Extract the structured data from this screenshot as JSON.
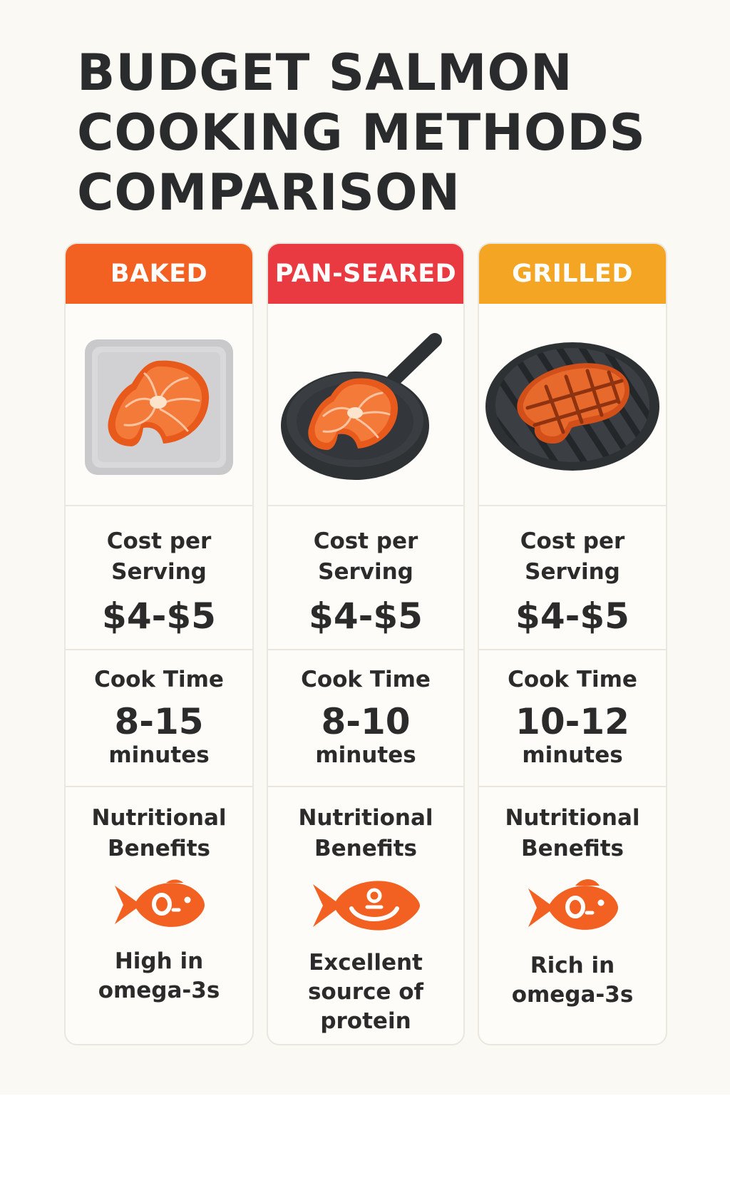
{
  "title_lines": [
    "BUDGET SALMON",
    "COOKING METHODS",
    "COMPARISON"
  ],
  "colors": {
    "baked": "#f26122",
    "pan_seared": "#ea3a41",
    "grilled": "#f3a523",
    "fish_icon": "#f26122",
    "background": "#fbf9f4"
  },
  "methods": [
    {
      "name": "BAKED",
      "image_icon": "salmon-on-baking-tray",
      "cost_label": [
        "Cost per",
        "Serving"
      ],
      "cost_value": "$4-$5",
      "time_label": "Cook Time",
      "time_value": "8-15",
      "time_unit": "minutes",
      "nutrition_label": [
        "Nutritional",
        "Benefits"
      ],
      "nutrition_icon": "fish-omega-icon",
      "nutrition_text": [
        "High in",
        "omega-3s"
      ]
    },
    {
      "name": "PAN-SEARED",
      "image_icon": "salmon-in-frying-pan",
      "cost_label": [
        "Cost per",
        "Serving"
      ],
      "cost_value": "$4-$5",
      "time_label": "Cook Time",
      "time_value": "8-10",
      "time_unit": "minutes",
      "nutrition_label": [
        "Nutritional",
        "Benefits"
      ],
      "nutrition_icon": "fish-protein-icon",
      "nutrition_text": [
        "Excellent",
        "source of",
        "protein"
      ]
    },
    {
      "name": "GRILLED",
      "image_icon": "salmon-on-grill",
      "cost_label": [
        "Cost per",
        "Serving"
      ],
      "cost_value": "$4-$5",
      "time_label": "Cook Time",
      "time_value": "10-12",
      "time_unit": "minutes",
      "nutrition_label": [
        "Nutritional",
        "Benefits"
      ],
      "nutrition_icon": "fish-omega-icon",
      "nutrition_text": [
        "Rich in",
        "omega-3s"
      ]
    }
  ]
}
